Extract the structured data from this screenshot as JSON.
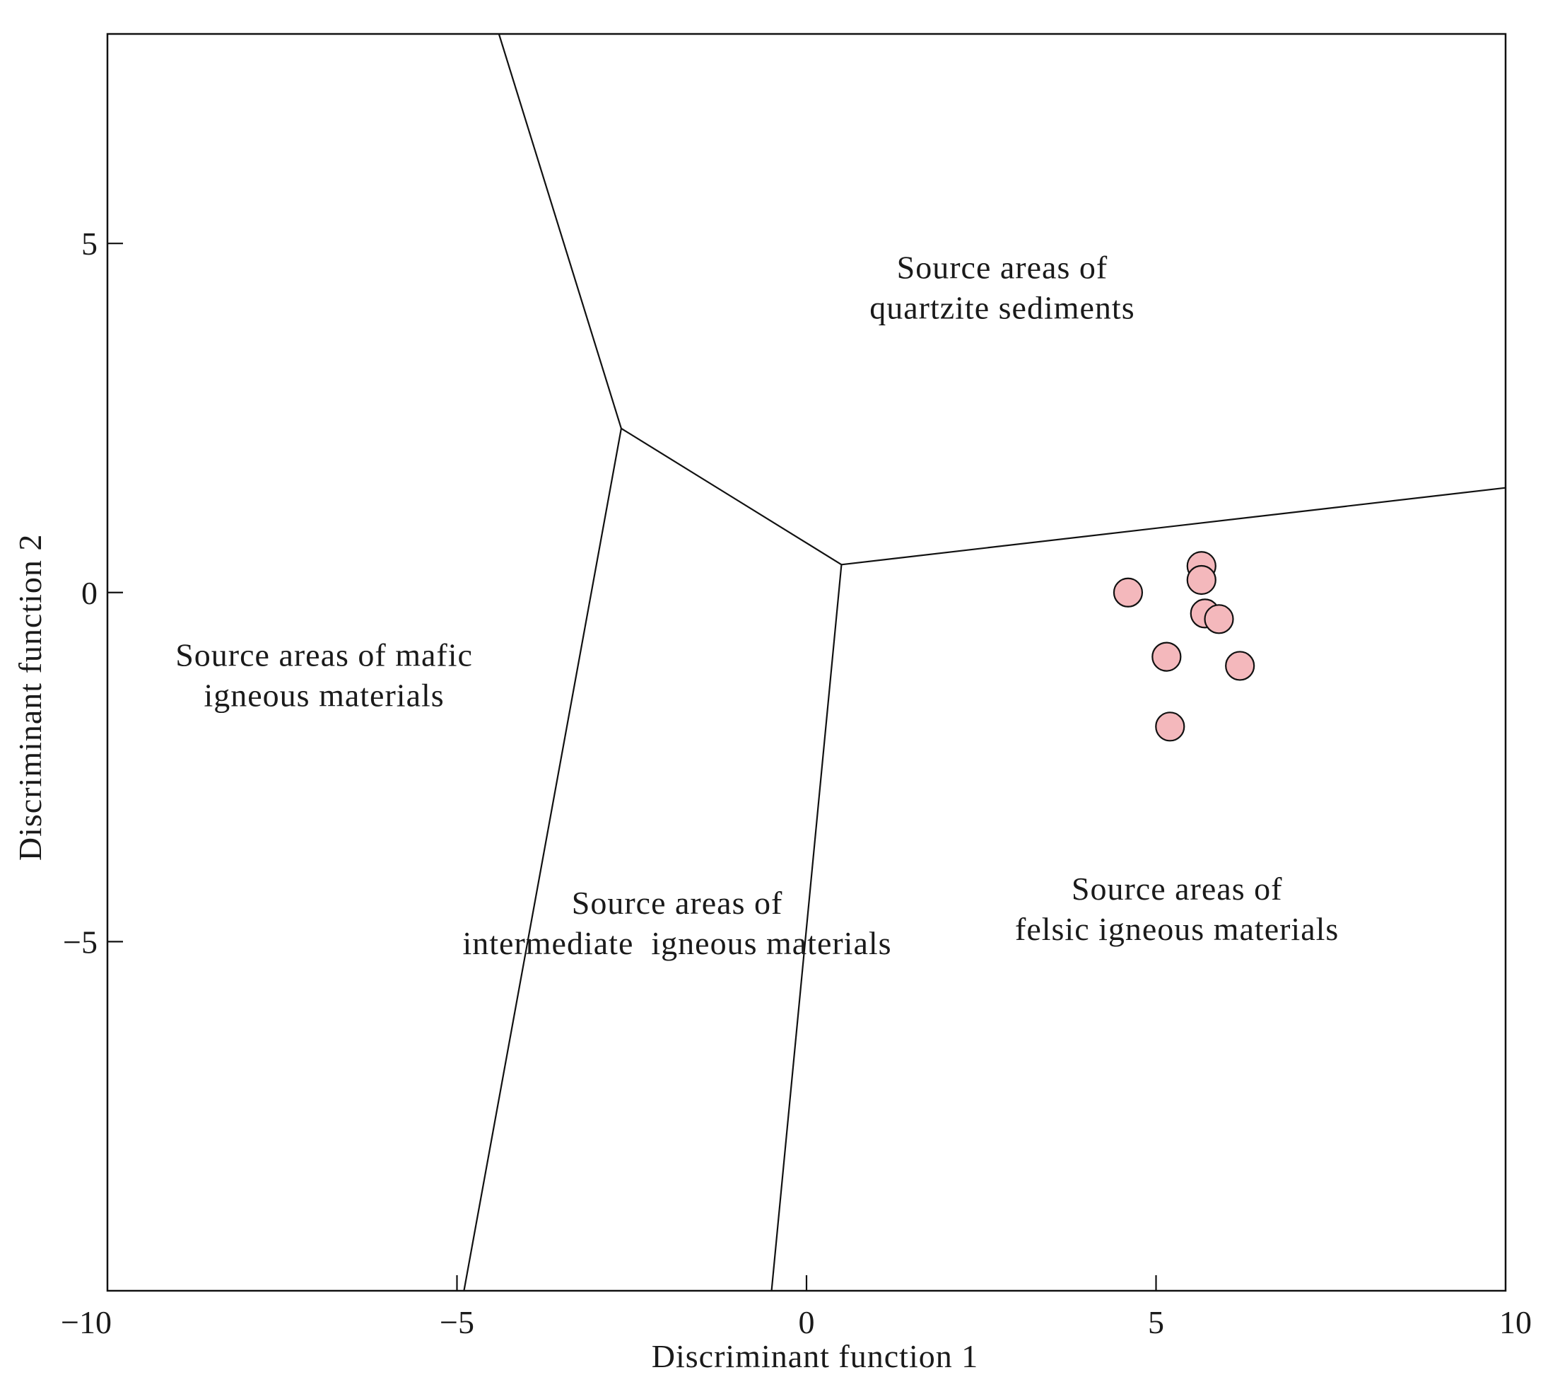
{
  "chart_data": {
    "type": "scatter",
    "xlabel": "Discriminant function 1",
    "ylabel": "Discriminant function 2",
    "xlim": [
      -10,
      10
    ],
    "ylim": [
      -10,
      8
    ],
    "x_ticks": [
      {
        "value": -10,
        "label": "−10"
      },
      {
        "value": -5,
        "label": "−5"
      },
      {
        "value": 0,
        "label": "0"
      },
      {
        "value": 5,
        "label": "5"
      },
      {
        "value": 10,
        "label": "10"
      }
    ],
    "y_ticks": [
      {
        "value": 5,
        "label": "5"
      },
      {
        "value": 0,
        "label": "0"
      },
      {
        "value": -5,
        "label": "−5"
      }
    ],
    "grid": false,
    "series": [
      {
        "marker": "circle",
        "color": "#f4b8bc",
        "points": [
          {
            "x": 4.6,
            "y": 0.0
          },
          {
            "x": 5.65,
            "y": 0.38
          },
          {
            "x": 5.65,
            "y": 0.18
          },
          {
            "x": 5.7,
            "y": -0.3
          },
          {
            "x": 5.9,
            "y": -0.38
          },
          {
            "x": 5.15,
            "y": -0.92
          },
          {
            "x": 6.2,
            "y": -1.05
          },
          {
            "x": 5.2,
            "y": -1.92
          }
        ]
      }
    ],
    "boundaries": [
      {
        "name": "quartzite-mafic",
        "points": [
          [
            -4.4,
            8.0
          ],
          [
            -2.65,
            2.35
          ]
        ]
      },
      {
        "name": "quartzite-intermediate",
        "points": [
          [
            -2.65,
            2.35
          ],
          [
            0.5,
            0.4
          ]
        ]
      },
      {
        "name": "mafic-intermediate",
        "points": [
          [
            -2.65,
            2.35
          ],
          [
            -4.9,
            -10.0
          ]
        ]
      },
      {
        "name": "quartzite-felsic",
        "points": [
          [
            0.5,
            0.4
          ],
          [
            10.0,
            1.5
          ]
        ]
      },
      {
        "name": "intermediate-felsic",
        "points": [
          [
            0.5,
            0.4
          ],
          [
            -0.5,
            -10.0
          ]
        ]
      }
    ],
    "regions": [
      {
        "name": "quartzite",
        "lines": [
          "Source areas of",
          "quartzite sediments"
        ],
        "x": 2.8,
        "y": 4.5
      },
      {
        "name": "mafic",
        "lines": [
          "Source areas of mafic",
          "igneous materials"
        ],
        "x": -6.9,
        "y": -1.05
      },
      {
        "name": "intermediate",
        "lines": [
          "Source areas of",
          "intermediate  igneous materials"
        ],
        "x": -1.85,
        "y": -4.6
      },
      {
        "name": "felsic",
        "lines": [
          "Source areas of",
          "felsic igneous materials"
        ],
        "x": 5.3,
        "y": -4.4
      }
    ]
  }
}
